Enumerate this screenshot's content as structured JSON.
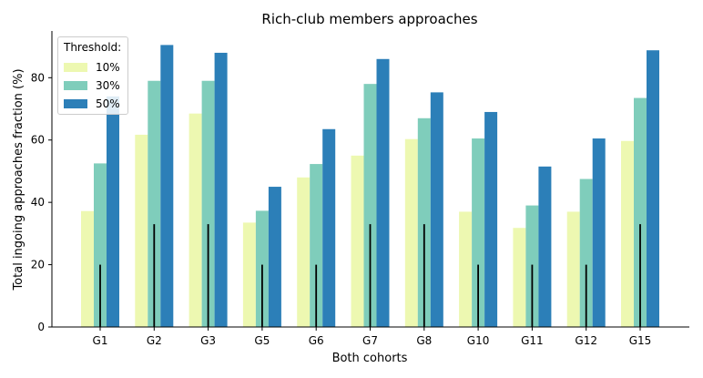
{
  "chart_data": {
    "type": "bar",
    "title": "Rich-club members approaches",
    "xlabel": "Both cohorts",
    "ylabel": "Total ingoing approaches fraction (%)",
    "ylim": [
      0,
      95
    ],
    "yticks": [
      0,
      20,
      40,
      60,
      80
    ],
    "grid": false,
    "legend": {
      "title": "Threshold:",
      "placement": "top-left"
    },
    "categories": [
      "G1",
      "G2",
      "G3",
      "G5",
      "G6",
      "G7",
      "G8",
      "G10",
      "G11",
      "G12",
      "G15"
    ],
    "series": [
      {
        "name": "10%",
        "color": "#edf8b1",
        "values": [
          37.2,
          61.7,
          68.5,
          33.5,
          48.0,
          55.0,
          60.3,
          37.0,
          31.8,
          37.0,
          59.7
        ]
      },
      {
        "name": "30%",
        "color": "#7fcdbb",
        "values": [
          52.5,
          79.0,
          79.0,
          37.3,
          52.3,
          78.0,
          67.0,
          60.5,
          39.0,
          47.5,
          73.5
        ]
      },
      {
        "name": "50%",
        "color": "#2c7fb8",
        "values": [
          74.0,
          90.5,
          88.0,
          45.0,
          63.5,
          86.0,
          75.3,
          69.0,
          51.5,
          60.5,
          88.8
        ]
      }
    ],
    "reference_lines": {
      "description_values": [
        20,
        33,
        33,
        20,
        20,
        33,
        33,
        20,
        20,
        20,
        33
      ],
      "color": "#000000"
    }
  }
}
